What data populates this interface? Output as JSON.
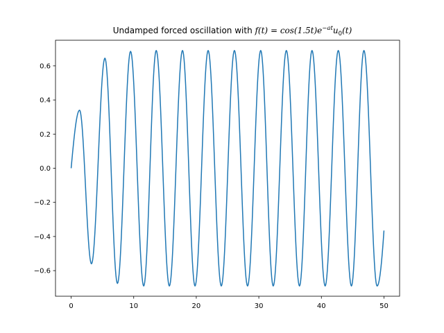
{
  "chart_data": {
    "type": "line",
    "title_prefix": "Undamped forced oscillation with ",
    "title_formula": {
      "lhs": "f(t)",
      "eq": " = ",
      "base": "cos(1.5t)e",
      "sup": "−at",
      "u": "u",
      "sub": "0",
      "tail": "(t)"
    },
    "xlabel": "",
    "ylabel": "",
    "xlim": [
      -2.5,
      52.5
    ],
    "ylim": [
      -0.75,
      0.75
    ],
    "x_ticks": [
      0,
      10,
      20,
      30,
      40,
      50
    ],
    "x_tick_labels": [
      "0",
      "10",
      "20",
      "30",
      "40",
      "50"
    ],
    "y_ticks": [
      -0.6,
      -0.4,
      -0.2,
      0.0,
      0.2,
      0.4,
      0.6
    ],
    "y_tick_labels": [
      "−0.6",
      "−0.4",
      "−0.2",
      "0.0",
      "0.2",
      "0.4",
      "0.6"
    ],
    "grid": false,
    "series": [
      {
        "color": "#1f77b4",
        "x": [
          0,
          1.35,
          3.25,
          5.4,
          7.4,
          9.5,
          11.6,
          13.6,
          15.7,
          17.8,
          19.8,
          21.9,
          24.0,
          26.1,
          28.2,
          30.3,
          32.3,
          34.4,
          36.5,
          38.5,
          40.6,
          42.7,
          44.8,
          46.8,
          48.9,
          50
        ],
        "y": [
          0.0,
          0.34,
          -0.56,
          0.645,
          -0.675,
          0.685,
          -0.69,
          0.69,
          -0.69,
          0.69,
          -0.69,
          0.69,
          -0.69,
          0.69,
          -0.69,
          0.69,
          -0.69,
          0.69,
          -0.69,
          0.69,
          -0.69,
          0.69,
          -0.69,
          0.69,
          -0.69,
          -0.365
        ]
      }
    ]
  }
}
